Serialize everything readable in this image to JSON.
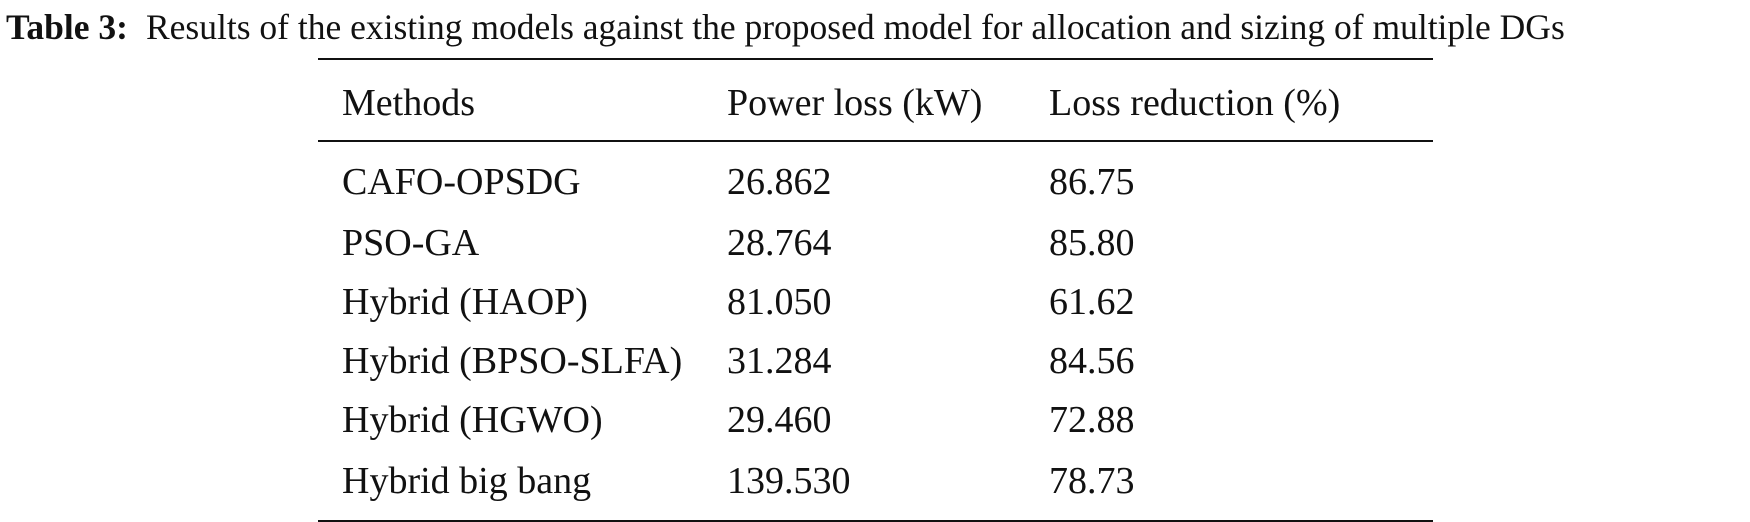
{
  "caption": {
    "label": "Table 3:",
    "text": "Results of the existing models against the proposed model for allocation and sizing of multiple DGs"
  },
  "table": {
    "headers": [
      "Methods",
      "Power loss (kW)",
      "Loss reduction (%)"
    ],
    "rows": [
      [
        "CAFO-OPSDG",
        "26.862",
        "86.75"
      ],
      [
        "PSO-GA",
        "28.764",
        "85.80"
      ],
      [
        "Hybrid (HAOP)",
        "81.050",
        "61.62"
      ],
      [
        "Hybrid (BPSO-SLFA)",
        "31.284",
        "84.56"
      ],
      [
        "Hybrid (HGWO)",
        "29.460",
        "72.88"
      ],
      [
        "Hybrid big bang",
        "139.530",
        "78.73"
      ]
    ]
  }
}
